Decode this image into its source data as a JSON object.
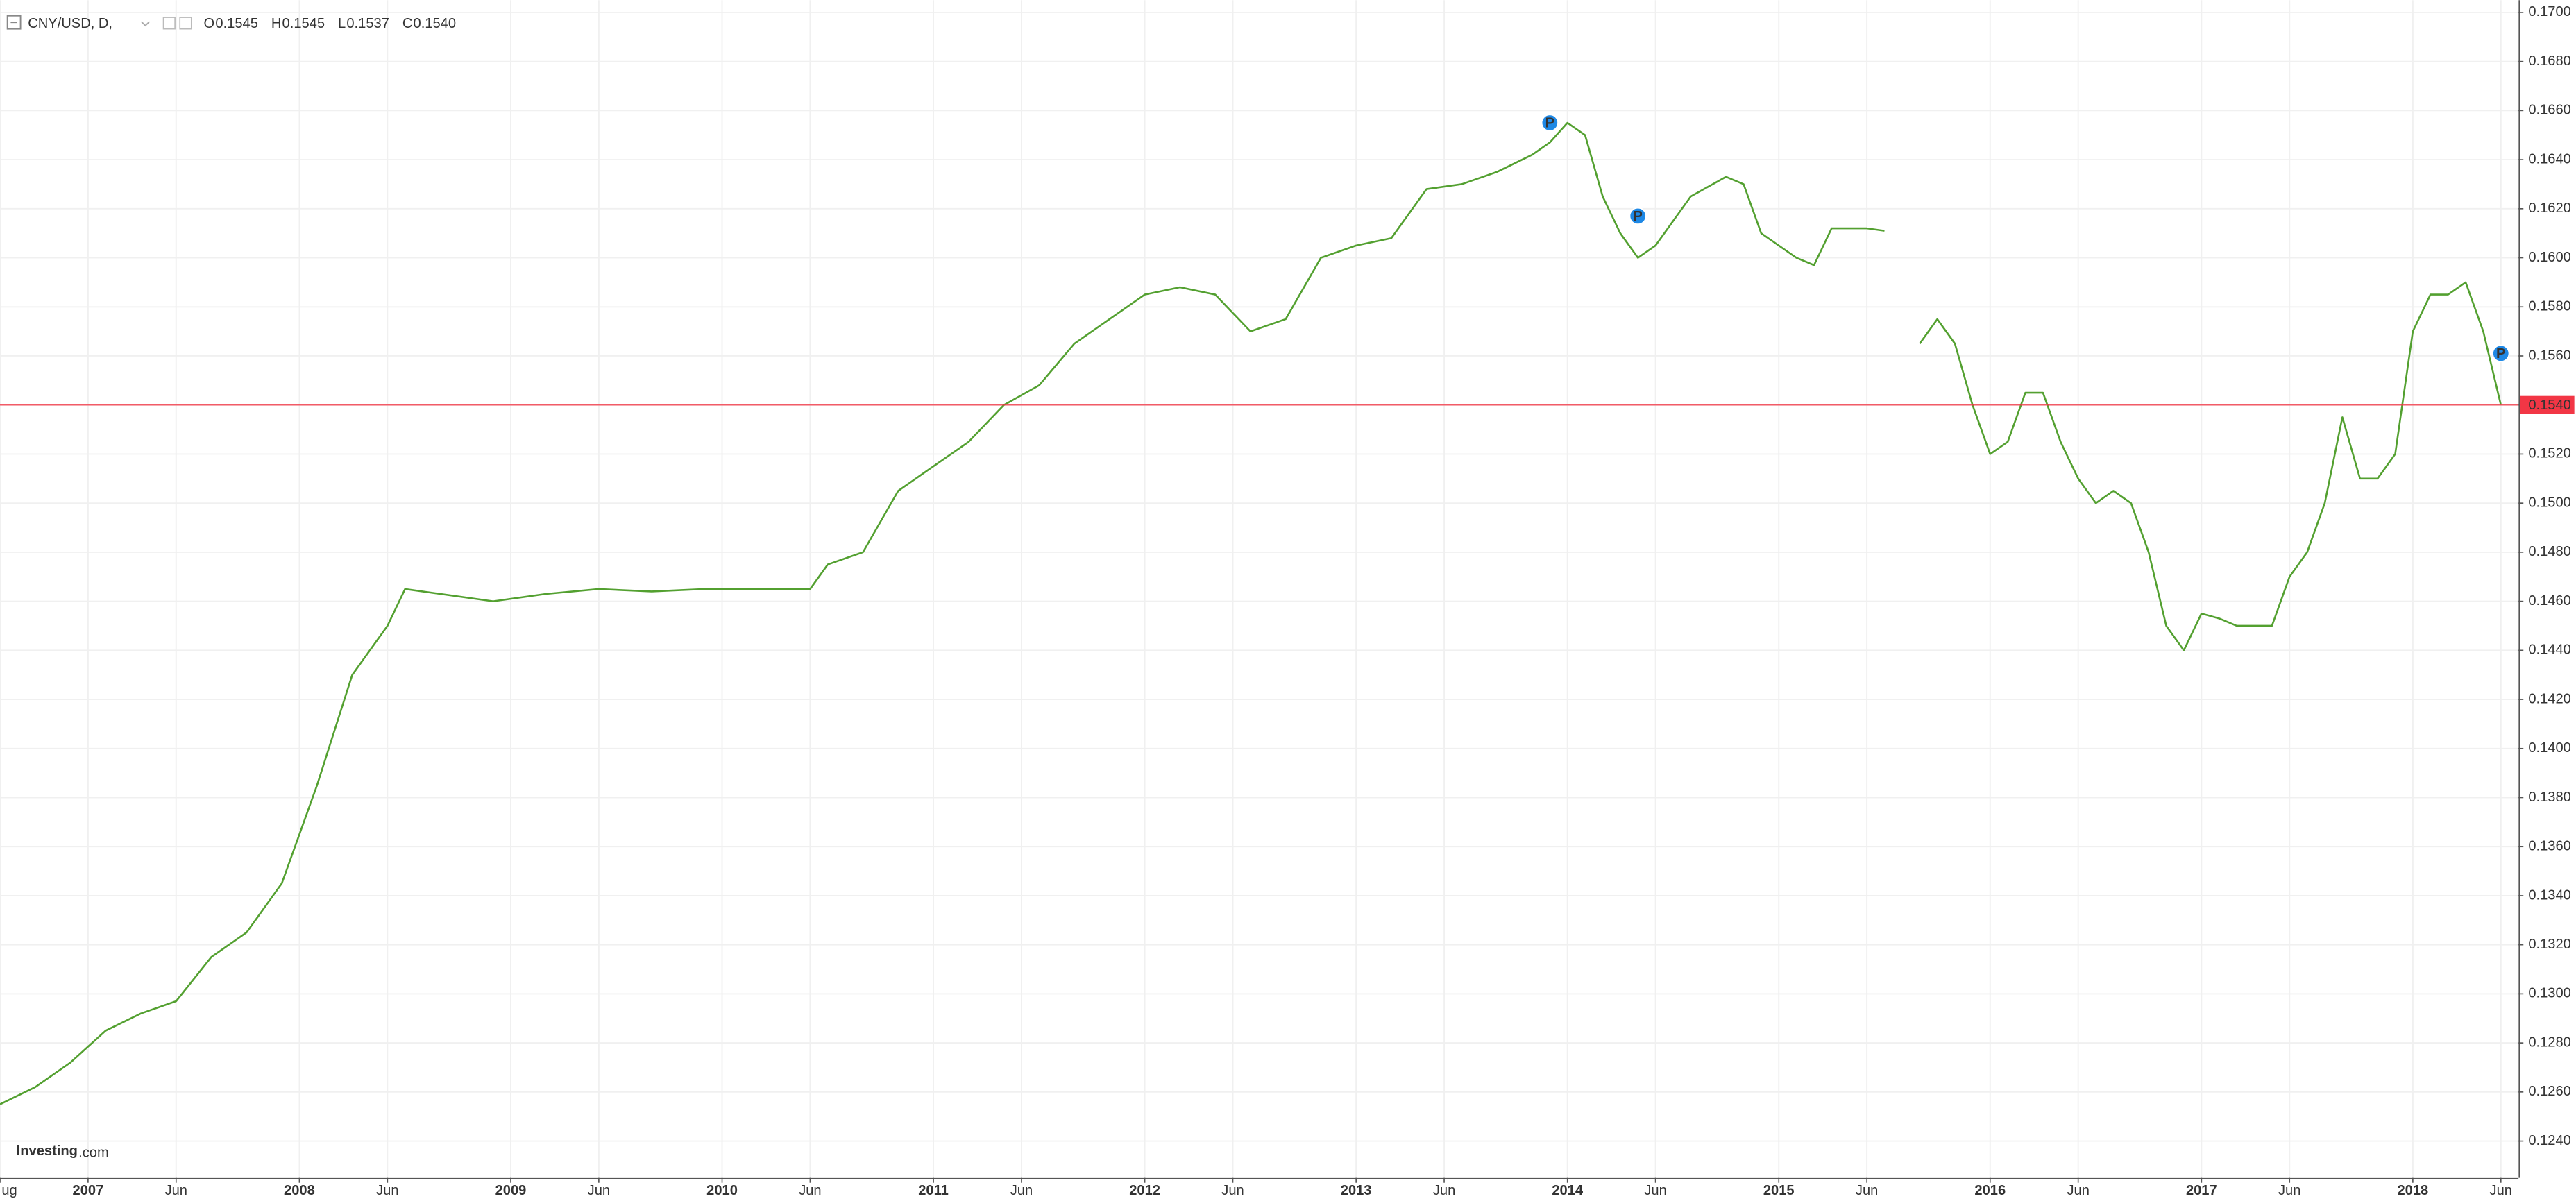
{
  "chart_data": {
    "type": "line",
    "header": {
      "symbol": "CNY/USD, D,",
      "ohlc": [
        {
          "key": "O",
          "value": "0.1545"
        },
        {
          "key": "H",
          "value": "0.1545"
        },
        {
          "key": "L",
          "value": "0.1537"
        },
        {
          "key": "C",
          "value": "0.1540"
        }
      ]
    },
    "brand": {
      "name": "Investing",
      "suffix": ".com"
    },
    "x": [
      "2006-08",
      "2006-10",
      "2006-12",
      "2007-02",
      "2007-04",
      "2007-06",
      "2007-08",
      "2007-10",
      "2007-12",
      "2008-02",
      "2008-04",
      "2008-06",
      "2008-07",
      "2008-09",
      "2008-12",
      "2009-03",
      "2009-06",
      "2009-09",
      "2009-12",
      "2010-03",
      "2010-06",
      "2010-07",
      "2010-09",
      "2010-11",
      "2011-01",
      "2011-03",
      "2011-05",
      "2011-07",
      "2011-09",
      "2011-11",
      "2012-01",
      "2012-03",
      "2012-05",
      "2012-07",
      "2012-09",
      "2012-11",
      "2013-01",
      "2013-03",
      "2013-05",
      "2013-07",
      "2013-09",
      "2013-11",
      "2013-12",
      "2014-01",
      "2014-02",
      "2014-03",
      "2014-04",
      "2014-05",
      "2014-06",
      "2014-08",
      "2014-10",
      "2014-11",
      "2014-12",
      "2015-02",
      "2015-03",
      "2015-04",
      "2015-06",
      "2015-07",
      "2015-08",
      "2015-09",
      "2015-10",
      "2015-11",
      "2015-12",
      "2016-01",
      "2016-02",
      "2016-03",
      "2016-04",
      "2016-05",
      "2016-06",
      "2016-07",
      "2016-08",
      "2016-09",
      "2016-10",
      "2016-11",
      "2016-12",
      "2017-01",
      "2017-02",
      "2017-03",
      "2017-05",
      "2017-06",
      "2017-07",
      "2017-08",
      "2017-09",
      "2017-10",
      "2017-11",
      "2017-12",
      "2018-01",
      "2018-02",
      "2018-03",
      "2018-04",
      "2018-05",
      "2018-06"
    ],
    "values": [
      0.1255,
      0.1262,
      0.1272,
      0.1285,
      0.1292,
      0.1297,
      0.1315,
      0.1325,
      0.1345,
      0.1385,
      0.143,
      0.145,
      0.1465,
      0.1463,
      0.146,
      0.1463,
      0.1465,
      0.1464,
      0.1465,
      0.1465,
      0.1465,
      0.1475,
      0.148,
      0.1505,
      0.1515,
      0.1525,
      0.154,
      0.1548,
      0.1565,
      0.1575,
      0.1585,
      0.1588,
      0.1585,
      0.157,
      0.1575,
      0.16,
      0.1605,
      0.1608,
      0.1628,
      0.163,
      0.1635,
      0.1642,
      0.1647,
      0.1655,
      0.165,
      0.1625,
      0.161,
      0.16,
      0.1605,
      0.1625,
      0.1633,
      0.163,
      0.161,
      0.16,
      0.1597,
      0.1612,
      0.1612,
      0.1611,
      null,
      0.1565,
      0.1575,
      0.1565,
      0.154,
      0.152,
      0.1525,
      0.1545,
      0.1545,
      0.1525,
      0.151,
      0.15,
      0.1505,
      0.15,
      0.148,
      0.145,
      0.144,
      0.1455,
      0.1453,
      0.145,
      0.145,
      0.147,
      0.148,
      0.15,
      0.1535,
      0.151,
      0.151,
      0.152,
      0.157,
      0.1585,
      0.1585,
      0.159,
      0.157,
      0.154
    ],
    "color": "#53a030",
    "xlim": [
      "2006-08",
      "2018-07"
    ],
    "ylim": [
      0.1225,
      0.1705
    ],
    "grid": true,
    "yticks": [
      {
        "value": 0.124,
        "label": "0.1240"
      },
      {
        "value": 0.126,
        "label": "0.1260"
      },
      {
        "value": 0.128,
        "label": "0.1280"
      },
      {
        "value": 0.13,
        "label": "0.1300"
      },
      {
        "value": 0.132,
        "label": "0.1320"
      },
      {
        "value": 0.134,
        "label": "0.1340"
      },
      {
        "value": 0.136,
        "label": "0.1360"
      },
      {
        "value": 0.138,
        "label": "0.1380"
      },
      {
        "value": 0.14,
        "label": "0.1400"
      },
      {
        "value": 0.142,
        "label": "0.1420"
      },
      {
        "value": 0.144,
        "label": "0.1440"
      },
      {
        "value": 0.146,
        "label": "0.1460"
      },
      {
        "value": 0.148,
        "label": "0.1480"
      },
      {
        "value": 0.15,
        "label": "0.1500"
      },
      {
        "value": 0.152,
        "label": "0.1520"
      },
      {
        "value": 0.154,
        "label": "0.1540"
      },
      {
        "value": 0.156,
        "label": "0.1560"
      },
      {
        "value": 0.158,
        "label": "0.1580"
      },
      {
        "value": 0.16,
        "label": "0.1600"
      },
      {
        "value": 0.162,
        "label": "0.1620"
      },
      {
        "value": 0.164,
        "label": "0.1640"
      },
      {
        "value": 0.166,
        "label": "0.1660"
      },
      {
        "value": 0.168,
        "label": "0.1680"
      },
      {
        "value": 0.17,
        "label": "0.1700"
      }
    ],
    "xticks": [
      {
        "value": "2006-08",
        "label": "ug"
      },
      {
        "value": "2007-01",
        "label": "2007"
      },
      {
        "value": "2007-06",
        "label": "Jun"
      },
      {
        "value": "2008-01",
        "label": "2008"
      },
      {
        "value": "2008-06",
        "label": "Jun"
      },
      {
        "value": "2009-01",
        "label": "2009"
      },
      {
        "value": "2009-06",
        "label": "Jun"
      },
      {
        "value": "2010-01",
        "label": "2010"
      },
      {
        "value": "2010-06",
        "label": "Jun"
      },
      {
        "value": "2011-01",
        "label": "2011"
      },
      {
        "value": "2011-06",
        "label": "Jun"
      },
      {
        "value": "2012-01",
        "label": "2012"
      },
      {
        "value": "2012-06",
        "label": "Jun"
      },
      {
        "value": "2013-01",
        "label": "2013"
      },
      {
        "value": "2013-06",
        "label": "Jun"
      },
      {
        "value": "2014-01",
        "label": "2014"
      },
      {
        "value": "2014-06",
        "label": "Jun"
      },
      {
        "value": "2015-01",
        "label": "2015"
      },
      {
        "value": "2015-06",
        "label": "Jun"
      },
      {
        "value": "2016-01",
        "label": "2016"
      },
      {
        "value": "2016-06",
        "label": "Jun"
      },
      {
        "value": "2017-01",
        "label": "2017"
      },
      {
        "value": "2017-06",
        "label": "Jun"
      },
      {
        "value": "2018-01",
        "label": "2018"
      },
      {
        "value": "2018-06",
        "label": "Jun"
      }
    ],
    "last_price": {
      "value": 0.154,
      "label": "0.1540",
      "color": "#f23645"
    },
    "annotations": [
      {
        "text": "P",
        "x": "2013-12",
        "y": 0.1655
      },
      {
        "text": "P",
        "x": "2014-05",
        "y": 0.1617
      },
      {
        "text": "P",
        "x": "2018-06",
        "y": 0.1561
      }
    ]
  }
}
